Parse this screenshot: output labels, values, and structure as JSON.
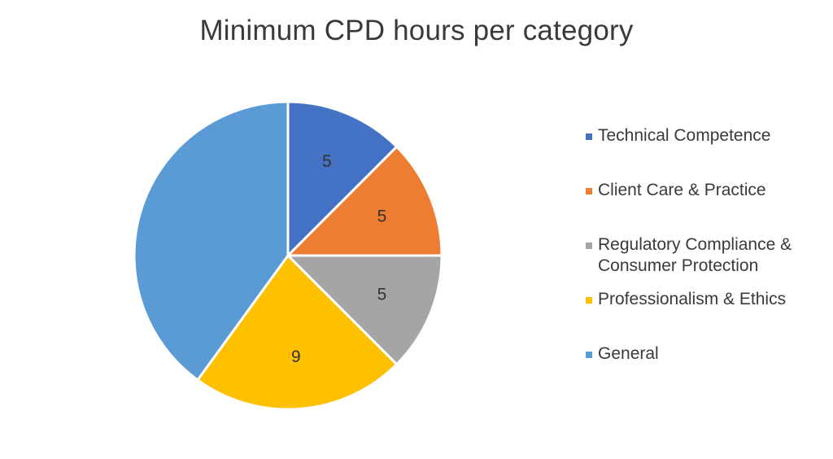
{
  "chart_data": {
    "type": "pie",
    "title": "Minimum CPD hours per category",
    "categories": [
      "Technical Competence",
      "Client Care & Practice",
      "Regulatory Compliance & Consumer Protection",
      "Professionalism & Ethics",
      "General"
    ],
    "values": [
      5,
      5,
      5,
      9,
      16
    ],
    "data_labels": [
      "5",
      "5",
      "5",
      "9",
      ""
    ],
    "colors": [
      "#4472C4",
      "#ED7D31",
      "#A5A5A5",
      "#FFC000",
      "#5B9BD5"
    ],
    "legend": {
      "placement": "right",
      "entries": [
        {
          "label": "Technical Competence",
          "color": "#4472C4"
        },
        {
          "label": "Client Care & Practice",
          "color": "#ED7D31"
        },
        {
          "label": "Regulatory Compliance &\nConsumer Protection",
          "color": "#A5A5A5"
        },
        {
          "label": "Professionalism & Ethics",
          "color": "#FFC000"
        },
        {
          "label": "General",
          "color": "#5B9BD5"
        }
      ]
    }
  }
}
